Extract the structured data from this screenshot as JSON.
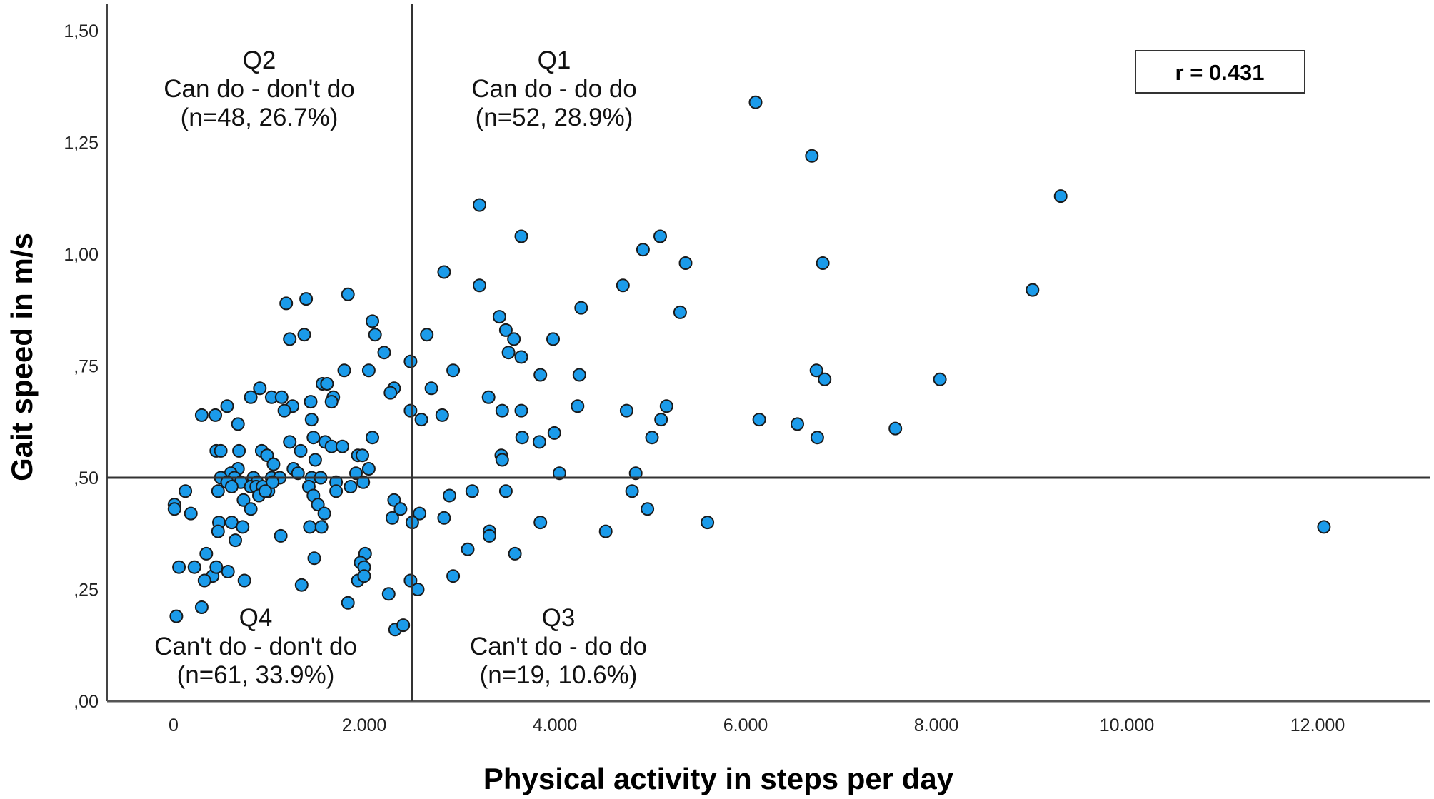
{
  "chart_data": {
    "type": "scatter",
    "title": "",
    "xlabel": "Physical activity in steps per day",
    "ylabel": "Gait speed in m/s",
    "xlim": [
      -800,
      13200
    ],
    "ylim": [
      0,
      1.55
    ],
    "x_ticks": [
      0,
      2000,
      4000,
      6000,
      8000,
      10000,
      12000
    ],
    "x_tick_labels": [
      "0",
      "2.000",
      "4.000",
      "6.000",
      "8.000",
      "10.000",
      "12.000"
    ],
    "y_ticks": [
      0,
      0.25,
      0.5,
      0.75,
      1.0,
      1.25,
      1.5
    ],
    "y_tick_labels": [
      ",00",
      ",25",
      ",50",
      ",75",
      "1,00",
      "1,25",
      "1,50"
    ],
    "grid": false,
    "reference_lines": {
      "x": 2500,
      "y": 0.5
    },
    "annotation": "r = 0.431",
    "quadrants": [
      {
        "id": "Q1",
        "title": "Q1",
        "desc": "Can do - do do",
        "stats": "(n=52, 28.9%)",
        "position": "top-right"
      },
      {
        "id": "Q2",
        "title": "Q2",
        "desc": "Can do - don't do",
        "stats": "(n=48, 26.7%)",
        "position": "top-left"
      },
      {
        "id": "Q3",
        "title": "Q3",
        "desc": "Can't do - do do",
        "stats": "(n=19, 10.6%)",
        "position": "bottom-right"
      },
      {
        "id": "Q4",
        "title": "Q4",
        "desc": "Can't do - don't do",
        "stats": "(n=61, 33.9%)",
        "position": "bottom-left"
      }
    ],
    "marker_color": "#1b9bea",
    "marker_edge_color": "#1a1a1a",
    "points": [
      [
        6105,
        1.34
      ],
      [
        6695,
        1.22
      ],
      [
        9305,
        1.13
      ],
      [
        9010,
        0.92
      ],
      [
        6810,
        0.98
      ],
      [
        6743,
        0.74
      ],
      [
        6829,
        0.72
      ],
      [
        8038,
        0.72
      ],
      [
        7571,
        0.61
      ],
      [
        6543,
        0.62
      ],
      [
        6752,
        0.59
      ],
      [
        6143,
        0.63
      ],
      [
        12067,
        0.39
      ],
      [
        5600,
        0.4
      ],
      [
        5105,
        1.04
      ],
      [
        4924,
        1.01
      ],
      [
        5371,
        0.98
      ],
      [
        5314,
        0.87
      ],
      [
        4714,
        0.93
      ],
      [
        4276,
        0.88
      ],
      [
        3981,
        0.81
      ],
      [
        3210,
        1.11
      ],
      [
        3648,
        1.04
      ],
      [
        2838,
        0.96
      ],
      [
        3210,
        0.93
      ],
      [
        3419,
        0.86
      ],
      [
        3486,
        0.83
      ],
      [
        3571,
        0.81
      ],
      [
        3514,
        0.78
      ],
      [
        3648,
        0.77
      ],
      [
        2657,
        0.82
      ],
      [
        2933,
        0.74
      ],
      [
        2705,
        0.7
      ],
      [
        3305,
        0.68
      ],
      [
        3848,
        0.73
      ],
      [
        4257,
        0.73
      ],
      [
        3448,
        0.65
      ],
      [
        3648,
        0.65
      ],
      [
        4238,
        0.66
      ],
      [
        4752,
        0.65
      ],
      [
        5171,
        0.66
      ],
      [
        5114,
        0.63
      ],
      [
        5019,
        0.59
      ],
      [
        3995,
        0.6
      ],
      [
        3657,
        0.59
      ],
      [
        3838,
        0.58
      ],
      [
        2819,
        0.64
      ],
      [
        2600,
        0.63
      ],
      [
        2486,
        0.65
      ],
      [
        3438,
        0.55
      ],
      [
        3448,
        0.54
      ],
      [
        4048,
        0.51
      ],
      [
        4848,
        0.51
      ],
      [
        4810,
        0.47
      ],
      [
        3486,
        0.47
      ],
      [
        3133,
        0.47
      ],
      [
        2895,
        0.46
      ],
      [
        4971,
        0.43
      ],
      [
        4533,
        0.38
      ],
      [
        3848,
        0.4
      ],
      [
        3314,
        0.38
      ],
      [
        3314,
        0.37
      ],
      [
        3086,
        0.34
      ],
      [
        3581,
        0.33
      ],
      [
        2933,
        0.28
      ],
      [
        2581,
        0.42
      ],
      [
        2838,
        0.41
      ],
      [
        2505,
        0.4
      ],
      [
        2486,
        0.27
      ],
      [
        2562,
        0.25
      ],
      [
        2486,
        0.76
      ],
      [
        1181,
        0.89
      ],
      [
        1390,
        0.9
      ],
      [
        1829,
        0.91
      ],
      [
        1219,
        0.81
      ],
      [
        1371,
        0.82
      ],
      [
        2086,
        0.85
      ],
      [
        2114,
        0.82
      ],
      [
        2210,
        0.78
      ],
      [
        2048,
        0.74
      ],
      [
        2314,
        0.7
      ],
      [
        2276,
        0.69
      ],
      [
        1790,
        0.74
      ],
      [
        1562,
        0.71
      ],
      [
        1610,
        0.71
      ],
      [
        1676,
        0.68
      ],
      [
        1438,
        0.67
      ],
      [
        1657,
        0.67
      ],
      [
        562,
        0.66
      ],
      [
        810,
        0.68
      ],
      [
        905,
        0.7
      ],
      [
        1029,
        0.68
      ],
      [
        1133,
        0.68
      ],
      [
        1248,
        0.66
      ],
      [
        1162,
        0.65
      ],
      [
        1448,
        0.63
      ],
      [
        676,
        0.62
      ],
      [
        295,
        0.64
      ],
      [
        438,
        0.64
      ],
      [
        2086,
        0.59
      ],
      [
        1467,
        0.59
      ],
      [
        1219,
        0.58
      ],
      [
        1590,
        0.58
      ],
      [
        1657,
        0.57
      ],
      [
        1771,
        0.57
      ],
      [
        924,
        0.56
      ],
      [
        448,
        0.56
      ],
      [
        495,
        0.56
      ],
      [
        686,
        0.56
      ],
      [
        981,
        0.55
      ],
      [
        1333,
        0.56
      ],
      [
        1933,
        0.55
      ],
      [
        1981,
        0.55
      ],
      [
        1486,
        0.54
      ],
      [
        1048,
        0.53
      ],
      [
        1257,
        0.52
      ],
      [
        2048,
        0.52
      ],
      [
        1305,
        0.51
      ],
      [
        1914,
        0.51
      ],
      [
        676,
        0.52
      ],
      [
        600,
        0.51
      ],
      [
        495,
        0.5
      ],
      [
        638,
        0.5
      ],
      [
        562,
        0.49
      ],
      [
        705,
        0.49
      ],
      [
        838,
        0.5
      ],
      [
        876,
        0.49
      ],
      [
        1029,
        0.5
      ],
      [
        1114,
        0.5
      ],
      [
        1448,
        0.5
      ],
      [
        1543,
        0.5
      ],
      [
        1705,
        0.49
      ],
      [
        1990,
        0.49
      ],
      [
        124,
        0.47
      ],
      [
        467,
        0.47
      ],
      [
        610,
        0.48
      ],
      [
        810,
        0.48
      ],
      [
        867,
        0.48
      ],
      [
        933,
        0.48
      ],
      [
        995,
        0.47
      ],
      [
        1038,
        0.49
      ],
      [
        1419,
        0.48
      ],
      [
        1705,
        0.47
      ],
      [
        1857,
        0.48
      ],
      [
        733,
        0.45
      ],
      [
        895,
        0.46
      ],
      [
        810,
        0.43
      ],
      [
        962,
        0.47
      ],
      [
        1467,
        0.46
      ],
      [
        1514,
        0.44
      ],
      [
        1581,
        0.42
      ],
      [
        10,
        0.44
      ],
      [
        10,
        0.43
      ],
      [
        181,
        0.42
      ],
      [
        476,
        0.4
      ],
      [
        610,
        0.4
      ],
      [
        724,
        0.39
      ],
      [
        1429,
        0.39
      ],
      [
        1552,
        0.39
      ],
      [
        1124,
        0.37
      ],
      [
        467,
        0.38
      ],
      [
        648,
        0.36
      ],
      [
        1476,
        0.32
      ],
      [
        2010,
        0.33
      ],
      [
        1962,
        0.31
      ],
      [
        2000,
        0.3
      ],
      [
        1933,
        0.27
      ],
      [
        2000,
        0.28
      ],
      [
        57,
        0.3
      ],
      [
        219,
        0.3
      ],
      [
        343,
        0.33
      ],
      [
        410,
        0.28
      ],
      [
        324,
        0.27
      ],
      [
        448,
        0.3
      ],
      [
        571,
        0.29
      ],
      [
        743,
        0.27
      ],
      [
        1343,
        0.26
      ],
      [
        1829,
        0.22
      ],
      [
        295,
        0.21
      ],
      [
        29,
        0.19
      ],
      [
        2257,
        0.24
      ],
      [
        2314,
        0.45
      ],
      [
        2381,
        0.43
      ],
      [
        2295,
        0.41
      ],
      [
        2324,
        0.16
      ],
      [
        2410,
        0.17
      ]
    ]
  }
}
